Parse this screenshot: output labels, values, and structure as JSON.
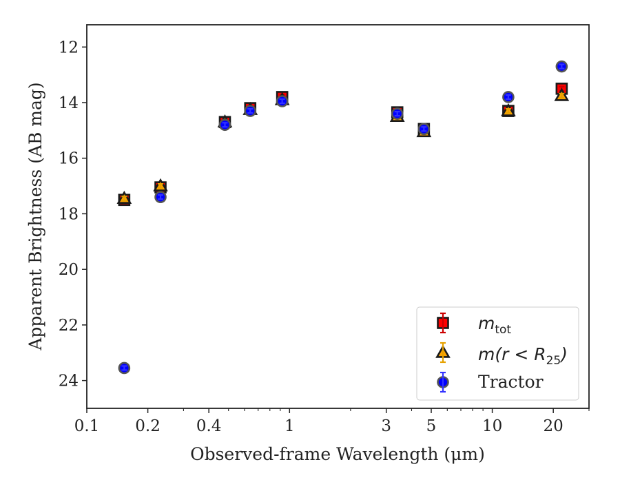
{
  "chart_data": {
    "type": "scatter",
    "xscale": "log",
    "xlim": [
      0.1,
      30
    ],
    "ylim": [
      25,
      11.2
    ],
    "y_inverted": true,
    "xlabel": "Observed-frame Wavelength (μm)",
    "ylabel": "Apparent Brightness (AB mag)",
    "x_ticks": [
      {
        "value": 0.1,
        "label": "0.1"
      },
      {
        "value": 0.2,
        "label": "0.2"
      },
      {
        "value": 0.4,
        "label": "0.4"
      },
      {
        "value": 1,
        "label": "1"
      },
      {
        "value": 3,
        "label": "3"
      },
      {
        "value": 5,
        "label": "5"
      },
      {
        "value": 10,
        "label": "10"
      },
      {
        "value": 20,
        "label": "20"
      }
    ],
    "x_minor_ticks": [
      0.3,
      0.5,
      0.6,
      0.7,
      0.8,
      0.9,
      2,
      4,
      6,
      7,
      8,
      9,
      30
    ],
    "y_ticks": [
      {
        "value": 12,
        "label": "12"
      },
      {
        "value": 14,
        "label": "14"
      },
      {
        "value": 16,
        "label": "16"
      },
      {
        "value": 18,
        "label": "18"
      },
      {
        "value": 20,
        "label": "20"
      },
      {
        "value": 22,
        "label": "22"
      },
      {
        "value": 24,
        "label": "24"
      }
    ],
    "legend_position": "lower-right",
    "series": [
      {
        "name": "m_tot",
        "legend_main": "m",
        "legend_sub": "tot",
        "marker": "square",
        "color": "#ff0000",
        "ecolor": "#cc0000",
        "x": [
          0.153,
          0.231,
          0.48,
          0.64,
          0.92,
          3.4,
          4.6,
          12,
          22
        ],
        "y": [
          17.5,
          17.05,
          14.7,
          14.2,
          13.8,
          14.35,
          14.95,
          14.3,
          13.5
        ]
      },
      {
        "name": "m(r < R_25)",
        "legend_main": "m(r < R",
        "legend_sub": "25",
        "legend_tail": ")",
        "marker": "triangle",
        "color": "#ffa500",
        "ecolor": "#e6a100",
        "x": [
          0.153,
          0.231,
          0.48,
          0.64,
          0.92,
          3.4,
          4.6,
          12,
          22
        ],
        "y": [
          17.45,
          17.0,
          14.7,
          14.25,
          13.9,
          14.5,
          15.05,
          14.3,
          13.75
        ]
      },
      {
        "name": "Tractor",
        "legend_main": "Tractor",
        "marker": "circle",
        "color": "#0000ff",
        "ecolor": "#3333ff",
        "x": [
          0.153,
          0.231,
          0.48,
          0.64,
          0.92,
          3.4,
          4.6,
          12,
          22
        ],
        "y": [
          23.55,
          17.4,
          14.8,
          14.3,
          13.95,
          14.4,
          14.95,
          13.8,
          12.7
        ]
      }
    ]
  }
}
